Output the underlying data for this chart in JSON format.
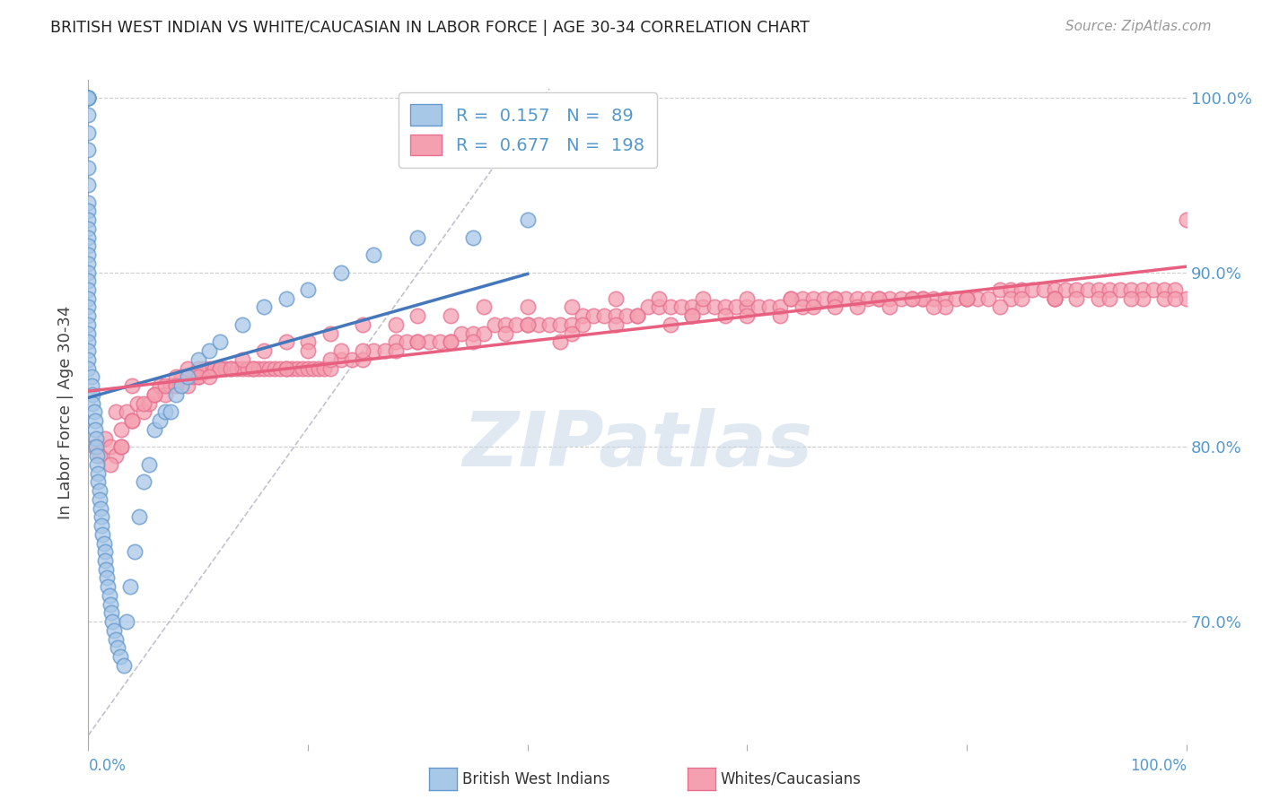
{
  "title": "BRITISH WEST INDIAN VS WHITE/CAUCASIAN IN LABOR FORCE | AGE 30-34 CORRELATION CHART",
  "source": "Source: ZipAtlas.com",
  "ylabel": "In Labor Force | Age 30-34",
  "xlim": [
    0.0,
    1.0
  ],
  "ylim": [
    0.63,
    1.01
  ],
  "yticks": [
    0.7,
    0.8,
    0.9,
    1.0
  ],
  "ytick_labels": [
    "70.0%",
    "80.0%",
    "90.0%",
    "100.0%"
  ],
  "blue_R": 0.157,
  "blue_N": 89,
  "pink_R": 0.677,
  "pink_N": 198,
  "blue_color": "#A8C8E8",
  "pink_color": "#F4A0B0",
  "blue_edge_color": "#6699CC",
  "pink_edge_color": "#E87090",
  "blue_line_color": "#4477BB",
  "pink_line_color": "#E86080",
  "diagonal_color": "#BBBBCC",
  "watermark_color": "#C8D8E8",
  "blue_scatter_x": [
    0.0,
    0.0,
    0.0,
    0.0,
    0.0,
    0.0,
    0.0,
    0.0,
    0.0,
    0.0,
    0.0,
    0.0,
    0.0,
    0.0,
    0.0,
    0.0,
    0.0,
    0.0,
    0.0,
    0.0,
    0.0,
    0.0,
    0.0,
    0.0,
    0.0,
    0.0,
    0.0,
    0.0,
    0.0,
    0.0,
    0.003,
    0.003,
    0.004,
    0.004,
    0.005,
    0.006,
    0.006,
    0.007,
    0.007,
    0.008,
    0.008,
    0.009,
    0.009,
    0.01,
    0.01,
    0.011,
    0.012,
    0.012,
    0.013,
    0.014,
    0.015,
    0.015,
    0.016,
    0.017,
    0.018,
    0.019,
    0.02,
    0.021,
    0.022,
    0.023,
    0.025,
    0.027,
    0.029,
    0.032,
    0.035,
    0.038,
    0.042,
    0.046,
    0.05,
    0.055,
    0.06,
    0.065,
    0.07,
    0.075,
    0.08,
    0.085,
    0.09,
    0.1,
    0.11,
    0.12,
    0.14,
    0.16,
    0.18,
    0.2,
    0.23,
    0.26,
    0.3,
    0.35,
    0.4
  ],
  "blue_scatter_y": [
    1.0,
    1.0,
    1.0,
    1.0,
    1.0,
    0.99,
    0.98,
    0.97,
    0.96,
    0.95,
    0.94,
    0.935,
    0.93,
    0.925,
    0.92,
    0.915,
    0.91,
    0.905,
    0.9,
    0.895,
    0.89,
    0.885,
    0.88,
    0.875,
    0.87,
    0.865,
    0.86,
    0.855,
    0.85,
    0.845,
    0.84,
    0.835,
    0.83,
    0.825,
    0.82,
    0.815,
    0.81,
    0.805,
    0.8,
    0.795,
    0.79,
    0.785,
    0.78,
    0.775,
    0.77,
    0.765,
    0.76,
    0.755,
    0.75,
    0.745,
    0.74,
    0.735,
    0.73,
    0.725,
    0.72,
    0.715,
    0.71,
    0.705,
    0.7,
    0.695,
    0.69,
    0.685,
    0.68,
    0.675,
    0.7,
    0.72,
    0.74,
    0.76,
    0.78,
    0.79,
    0.81,
    0.815,
    0.82,
    0.82,
    0.83,
    0.835,
    0.84,
    0.85,
    0.855,
    0.86,
    0.87,
    0.88,
    0.885,
    0.89,
    0.9,
    0.91,
    0.92,
    0.92,
    0.93
  ],
  "pink_scatter_x": [
    0.005,
    0.01,
    0.015,
    0.02,
    0.025,
    0.025,
    0.03,
    0.035,
    0.04,
    0.04,
    0.045,
    0.05,
    0.055,
    0.06,
    0.065,
    0.07,
    0.075,
    0.08,
    0.085,
    0.09,
    0.095,
    0.1,
    0.105,
    0.11,
    0.115,
    0.12,
    0.125,
    0.13,
    0.135,
    0.14,
    0.145,
    0.15,
    0.155,
    0.16,
    0.165,
    0.17,
    0.175,
    0.18,
    0.185,
    0.19,
    0.195,
    0.2,
    0.205,
    0.21,
    0.215,
    0.22,
    0.23,
    0.24,
    0.25,
    0.26,
    0.27,
    0.28,
    0.29,
    0.3,
    0.31,
    0.32,
    0.33,
    0.34,
    0.35,
    0.36,
    0.37,
    0.38,
    0.39,
    0.4,
    0.41,
    0.42,
    0.43,
    0.44,
    0.45,
    0.46,
    0.47,
    0.48,
    0.49,
    0.5,
    0.51,
    0.52,
    0.53,
    0.54,
    0.55,
    0.56,
    0.57,
    0.58,
    0.59,
    0.6,
    0.61,
    0.62,
    0.63,
    0.64,
    0.65,
    0.66,
    0.67,
    0.68,
    0.69,
    0.7,
    0.71,
    0.72,
    0.73,
    0.74,
    0.75,
    0.76,
    0.77,
    0.78,
    0.79,
    0.8,
    0.81,
    0.82,
    0.83,
    0.84,
    0.85,
    0.86,
    0.87,
    0.88,
    0.89,
    0.9,
    0.91,
    0.92,
    0.93,
    0.94,
    0.95,
    0.96,
    0.97,
    0.98,
    0.99,
    1.0,
    0.02,
    0.03,
    0.04,
    0.05,
    0.06,
    0.07,
    0.08,
    0.09,
    0.1,
    0.12,
    0.14,
    0.16,
    0.18,
    0.2,
    0.22,
    0.25,
    0.28,
    0.3,
    0.33,
    0.36,
    0.4,
    0.44,
    0.48,
    0.52,
    0.56,
    0.6,
    0.64,
    0.68,
    0.72,
    0.76,
    0.8,
    0.84,
    0.88,
    0.92,
    0.96,
    0.15,
    0.25,
    0.35,
    0.45,
    0.55,
    0.65,
    0.75,
    0.85,
    0.95,
    0.2,
    0.4,
    0.6,
    0.8,
    1.0,
    0.1,
    0.3,
    0.5,
    0.7,
    0.9,
    0.13,
    0.23,
    0.43,
    0.53,
    0.63,
    0.73,
    0.83,
    0.93,
    0.03,
    0.08,
    0.18,
    0.28,
    0.38,
    0.48,
    0.58,
    0.68,
    0.78,
    0.88,
    0.98,
    0.33,
    0.66,
    0.99,
    0.22,
    0.55,
    0.77,
    0.11,
    0.44,
    0.88
  ],
  "pink_scatter_y": [
    0.8,
    0.795,
    0.805,
    0.8,
    0.795,
    0.82,
    0.81,
    0.82,
    0.815,
    0.835,
    0.825,
    0.82,
    0.825,
    0.83,
    0.835,
    0.83,
    0.835,
    0.835,
    0.84,
    0.835,
    0.84,
    0.84,
    0.845,
    0.845,
    0.845,
    0.845,
    0.845,
    0.845,
    0.845,
    0.845,
    0.845,
    0.845,
    0.845,
    0.845,
    0.845,
    0.845,
    0.845,
    0.845,
    0.845,
    0.845,
    0.845,
    0.845,
    0.845,
    0.845,
    0.845,
    0.845,
    0.85,
    0.85,
    0.85,
    0.855,
    0.855,
    0.86,
    0.86,
    0.86,
    0.86,
    0.86,
    0.86,
    0.865,
    0.865,
    0.865,
    0.87,
    0.87,
    0.87,
    0.87,
    0.87,
    0.87,
    0.87,
    0.87,
    0.875,
    0.875,
    0.875,
    0.875,
    0.875,
    0.875,
    0.88,
    0.88,
    0.88,
    0.88,
    0.88,
    0.88,
    0.88,
    0.88,
    0.88,
    0.88,
    0.88,
    0.88,
    0.88,
    0.885,
    0.885,
    0.885,
    0.885,
    0.885,
    0.885,
    0.885,
    0.885,
    0.885,
    0.885,
    0.885,
    0.885,
    0.885,
    0.885,
    0.885,
    0.885,
    0.885,
    0.885,
    0.885,
    0.89,
    0.89,
    0.89,
    0.89,
    0.89,
    0.89,
    0.89,
    0.89,
    0.89,
    0.89,
    0.89,
    0.89,
    0.89,
    0.89,
    0.89,
    0.89,
    0.89,
    0.93,
    0.79,
    0.8,
    0.815,
    0.825,
    0.83,
    0.835,
    0.84,
    0.845,
    0.845,
    0.845,
    0.85,
    0.855,
    0.86,
    0.86,
    0.865,
    0.87,
    0.87,
    0.875,
    0.875,
    0.88,
    0.88,
    0.88,
    0.885,
    0.885,
    0.885,
    0.885,
    0.885,
    0.885,
    0.885,
    0.885,
    0.885,
    0.885,
    0.885,
    0.885,
    0.885,
    0.845,
    0.855,
    0.86,
    0.87,
    0.875,
    0.88,
    0.885,
    0.885,
    0.885,
    0.855,
    0.87,
    0.875,
    0.885,
    0.885,
    0.84,
    0.86,
    0.875,
    0.88,
    0.885,
    0.845,
    0.855,
    0.86,
    0.87,
    0.875,
    0.88,
    0.88,
    0.885,
    0.8,
    0.835,
    0.845,
    0.855,
    0.865,
    0.87,
    0.875,
    0.88,
    0.88,
    0.885,
    0.885,
    0.86,
    0.88,
    0.885,
    0.85,
    0.875,
    0.88,
    0.84,
    0.865,
    0.885
  ]
}
